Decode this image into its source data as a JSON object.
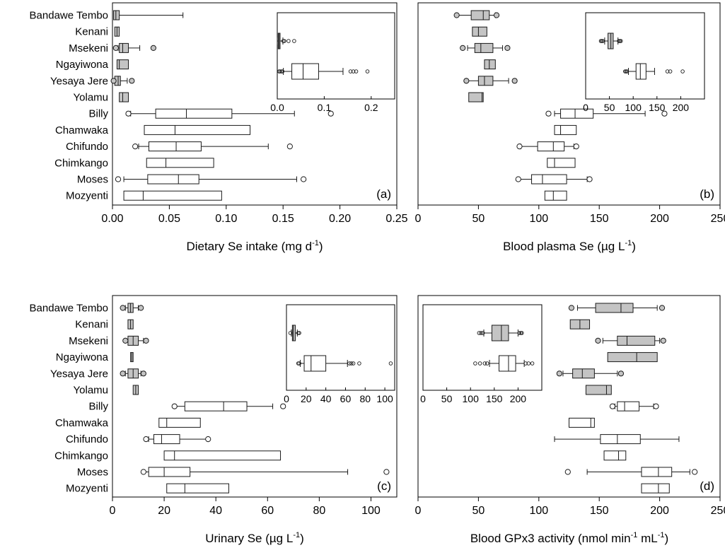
{
  "colors": {
    "rural": "#c4c4c4",
    "urban": "#ffffff",
    "stroke": "#1a1a1a"
  },
  "chart_data": [
    {
      "type": "boxplot",
      "panel": "(a)",
      "xlabel": {
        "main": "Dietary Se intake (mg d",
        "sup": "-1",
        "tail": ")"
      },
      "xlim": [
        0,
        0.25
      ],
      "ticks": [
        {
          "v": 0,
          "label": "0.00"
        },
        {
          "v": 0.05,
          "label": "0.05"
        },
        {
          "v": 0.1,
          "label": "0.10"
        },
        {
          "v": 0.15,
          "label": "0.15"
        },
        {
          "v": 0.2,
          "label": "0.20"
        },
        {
          "v": 0.25,
          "label": "0.25"
        }
      ],
      "sites": [
        "Bandawe Tembo",
        "Kenani",
        "Msekeni",
        "Ngayiwona",
        "Yesaya Jere",
        "Yolamu",
        "Billy",
        "Chamwaka",
        "Chifundo",
        "Chimkango",
        "Moses",
        "Mozyenti"
      ],
      "boxes": [
        {
          "site": "Bandawe Tembo",
          "group": "rural",
          "whislo": 0.001,
          "q1": 0.001,
          "med": 0.003,
          "q3": 0.006,
          "whishi": 0.062,
          "fliers": []
        },
        {
          "site": "Kenani",
          "group": "rural",
          "whislo": 0.002,
          "q1": 0.002,
          "med": 0.004,
          "q3": 0.006,
          "whishi": 0.006,
          "fliers": []
        },
        {
          "site": "Msekeni",
          "group": "rural",
          "whislo": 0.005,
          "q1": 0.006,
          "med": 0.009,
          "q3": 0.014,
          "whishi": 0.024,
          "fliers": [
            0.003,
            0.036
          ]
        },
        {
          "site": "Ngayiwona",
          "group": "rural",
          "whislo": 0.004,
          "q1": 0.004,
          "med": 0.006,
          "q3": 0.014,
          "whishi": 0.014,
          "fliers": []
        },
        {
          "site": "Yesaya Jere",
          "group": "rural",
          "whislo": 0.002,
          "q1": 0.002,
          "med": 0.005,
          "q3": 0.007,
          "whishi": 0.013,
          "fliers": [
            0.001,
            0.017
          ]
        },
        {
          "site": "Yolamu",
          "group": "rural",
          "whislo": 0.006,
          "q1": 0.006,
          "med": 0.009,
          "q3": 0.014,
          "whishi": 0.014,
          "fliers": []
        },
        {
          "site": "Billy",
          "group": "urban",
          "whislo": 0.016,
          "q1": 0.038,
          "med": 0.065,
          "q3": 0.105,
          "whishi": 0.16,
          "fliers": [
            0.014,
            0.192
          ]
        },
        {
          "site": "Chamwaka",
          "group": "urban",
          "whislo": 0.028,
          "q1": 0.028,
          "med": 0.055,
          "q3": 0.121,
          "whishi": 0.121,
          "fliers": []
        },
        {
          "site": "Chifundo",
          "group": "urban",
          "whislo": 0.023,
          "q1": 0.032,
          "med": 0.056,
          "q3": 0.078,
          "whishi": 0.137,
          "fliers": [
            0.02,
            0.156
          ]
        },
        {
          "site": "Chimkango",
          "group": "urban",
          "whislo": 0.03,
          "q1": 0.03,
          "med": 0.047,
          "q3": 0.089,
          "whishi": 0.089,
          "fliers": []
        },
        {
          "site": "Moses",
          "group": "urban",
          "whislo": 0.01,
          "q1": 0.031,
          "med": 0.058,
          "q3": 0.076,
          "whishi": 0.162,
          "fliers": [
            0.005,
            0.168
          ]
        },
        {
          "site": "Mozyenti",
          "group": "urban",
          "whislo": 0.01,
          "q1": 0.01,
          "med": 0.027,
          "q3": 0.096,
          "whishi": 0.096,
          "fliers": []
        }
      ],
      "inset": {
        "xlim": [
          0,
          0.25
        ],
        "ticks": [
          {
            "v": 0,
            "label": "0.0"
          },
          {
            "v": 0.1,
            "label": "0.1"
          },
          {
            "v": 0.2,
            "label": "0.2"
          }
        ],
        "boxes": [
          {
            "group": "rural",
            "whislo": 0.0,
            "q1": 0.002,
            "med": 0.004,
            "q3": 0.006,
            "whishi": 0.012,
            "fliers": [
              0.013,
              0.015,
              0.024,
              0.036
            ]
          },
          {
            "group": "urban",
            "whislo": 0.013,
            "q1": 0.031,
            "med": 0.055,
            "q3": 0.088,
            "whishi": 0.14,
            "fliers": [
              0.004,
              0.006,
              0.009,
              0.011,
              0.156,
              0.162,
              0.168,
              0.192
            ]
          }
        ]
      }
    },
    {
      "type": "boxplot",
      "panel": "(b)",
      "xlabel": {
        "main": "Blood plasma Se (µg L",
        "sup": "-1",
        "tail": ")"
      },
      "xlim": [
        0,
        250
      ],
      "ticks": [
        {
          "v": 0,
          "label": "0"
        },
        {
          "v": 50,
          "label": "50"
        },
        {
          "v": 100,
          "label": "100"
        },
        {
          "v": 150,
          "label": "150"
        },
        {
          "v": 200,
          "label": "200"
        },
        {
          "v": 250,
          "label": "250"
        }
      ],
      "boxes": [
        {
          "site": "Bandawe Tembo",
          "group": "rural",
          "whislo": 32,
          "q1": 44,
          "med": 54,
          "q3": 59,
          "whishi": 64,
          "fliers": [
            32,
            65
          ]
        },
        {
          "site": "Kenani",
          "group": "rural",
          "whislo": 45,
          "q1": 45,
          "med": 50,
          "q3": 57,
          "whishi": 57,
          "fliers": []
        },
        {
          "site": "Msekeni",
          "group": "rural",
          "whislo": 41,
          "q1": 47,
          "med": 52,
          "q3": 62,
          "whishi": 70,
          "fliers": [
            37,
            74
          ]
        },
        {
          "site": "Ngayiwona",
          "group": "rural",
          "whislo": 55,
          "q1": 55,
          "med": 59,
          "q3": 64,
          "whishi": 64,
          "fliers": []
        },
        {
          "site": "Yesaya Jere",
          "group": "rural",
          "whislo": 40,
          "q1": 50,
          "med": 55,
          "q3": 62,
          "whishi": 75,
          "fliers": [
            40,
            80
          ]
        },
        {
          "site": "Yolamu",
          "group": "rural",
          "whislo": 42,
          "q1": 42,
          "med": 53,
          "q3": 54,
          "whishi": 54,
          "fliers": []
        },
        {
          "site": "Billy",
          "group": "urban",
          "whislo": 113,
          "q1": 118,
          "med": 130,
          "q3": 145,
          "whishi": 188,
          "fliers": [
            108,
            204
          ]
        },
        {
          "site": "Chamwaka",
          "group": "urban",
          "whislo": 113,
          "q1": 113,
          "med": 118,
          "q3": 131,
          "whishi": 131,
          "fliers": []
        },
        {
          "site": "Chifundo",
          "group": "urban",
          "whislo": 85,
          "q1": 99,
          "med": 112,
          "q3": 121,
          "whishi": 129,
          "fliers": [
            84,
            131
          ]
        },
        {
          "site": "Chimkango",
          "group": "urban",
          "whislo": 107,
          "q1": 107,
          "med": 113,
          "q3": 130,
          "whishi": 130,
          "fliers": []
        },
        {
          "site": "Moses",
          "group": "urban",
          "whislo": 83,
          "q1": 94,
          "med": 103,
          "q3": 123,
          "whishi": 140,
          "fliers": [
            83,
            142
          ]
        },
        {
          "site": "Mozyenti",
          "group": "urban",
          "whislo": 105,
          "q1": 105,
          "med": 112,
          "q3": 123,
          "whishi": 123,
          "fliers": []
        }
      ],
      "inset": {
        "xlim": [
          0,
          250
        ],
        "ticks": [
          {
            "v": 0,
            "label": "0"
          },
          {
            "v": 50,
            "label": "50"
          },
          {
            "v": 100,
            "label": "100"
          },
          {
            "v": 150,
            "label": "150"
          },
          {
            "v": 200,
            "label": "200"
          }
        ],
        "boxes": [
          {
            "group": "rural",
            "whislo": 40,
            "q1": 47,
            "med": 53,
            "q3": 58,
            "whishi": 68,
            "fliers": [
              32,
              34,
              36,
              70,
              72,
              74
            ]
          },
          {
            "group": "urban",
            "whislo": 90,
            "q1": 106,
            "med": 115,
            "q3": 127,
            "whishi": 145,
            "fliers": [
              83,
              85,
              87,
              172,
              178,
              204
            ]
          }
        ]
      }
    },
    {
      "type": "boxplot",
      "panel": "(c)",
      "xlabel": {
        "main": "Urinary Se (µg L",
        "sup": "-1",
        "tail": ")"
      },
      "xlim": [
        0,
        110
      ],
      "ticks": [
        {
          "v": 0,
          "label": "0"
        },
        {
          "v": 20,
          "label": "20"
        },
        {
          "v": 40,
          "label": "40"
        },
        {
          "v": 60,
          "label": "60"
        },
        {
          "v": 80,
          "label": "80"
        },
        {
          "v": 100,
          "label": "100"
        }
      ],
      "boxes": [
        {
          "site": "Bandawe Tembo",
          "group": "rural",
          "whislo": 5,
          "q1": 6,
          "med": 7,
          "q3": 8,
          "whishi": 10,
          "fliers": [
            4,
            11
          ]
        },
        {
          "site": "Kenani",
          "group": "rural",
          "whislo": 6,
          "q1": 6,
          "med": 7,
          "q3": 8,
          "whishi": 8,
          "fliers": []
        },
        {
          "site": "Msekeni",
          "group": "rural",
          "whislo": 5,
          "q1": 6,
          "med": 8,
          "q3": 10,
          "whishi": 12,
          "fliers": [
            5,
            13
          ]
        },
        {
          "site": "Ngayiwona",
          "group": "rural",
          "whislo": 7,
          "q1": 7,
          "med": 7.5,
          "q3": 8,
          "whishi": 8,
          "fliers": []
        },
        {
          "site": "Yesaya Jere",
          "group": "rural",
          "whislo": 5,
          "q1": 6,
          "med": 8,
          "q3": 10,
          "whishi": 11,
          "fliers": [
            4,
            12
          ]
        },
        {
          "site": "Yolamu",
          "group": "rural",
          "whislo": 8,
          "q1": 8,
          "med": 9,
          "q3": 10,
          "whishi": 10,
          "fliers": []
        },
        {
          "site": "Billy",
          "group": "urban",
          "whislo": 24,
          "q1": 28,
          "med": 43,
          "q3": 52,
          "whishi": 62,
          "fliers": [
            24,
            66
          ]
        },
        {
          "site": "Chamwaka",
          "group": "urban",
          "whislo": 18,
          "q1": 18,
          "med": 21,
          "q3": 34,
          "whishi": 34,
          "fliers": []
        },
        {
          "site": "Chifundo",
          "group": "urban",
          "whislo": 14,
          "q1": 16,
          "med": 19,
          "q3": 26,
          "whishi": 37,
          "fliers": [
            13,
            37
          ]
        },
        {
          "site": "Chimkango",
          "group": "urban",
          "whislo": 20,
          "q1": 20,
          "med": 24,
          "q3": 65,
          "whishi": 65,
          "fliers": []
        },
        {
          "site": "Moses",
          "group": "urban",
          "whislo": 12,
          "q1": 14,
          "med": 20,
          "q3": 30,
          "whishi": 91,
          "fliers": [
            12,
            106
          ]
        },
        {
          "site": "Mozyenti",
          "group": "urban",
          "whislo": 21,
          "q1": 21,
          "med": 28,
          "q3": 45,
          "whishi": 45,
          "fliers": []
        }
      ],
      "inset": {
        "xlim": [
          0,
          110
        ],
        "ticks": [
          {
            "v": 0,
            "label": "0"
          },
          {
            "v": 20,
            "label": "20"
          },
          {
            "v": 40,
            "label": "40"
          },
          {
            "v": 60,
            "label": "60"
          },
          {
            "v": 80,
            "label": "80"
          },
          {
            "v": 100,
            "label": "100"
          }
        ],
        "boxes": [
          {
            "group": "rural",
            "whislo": 5,
            "q1": 6,
            "med": 7,
            "q3": 9,
            "whishi": 11,
            "fliers": [
              4,
              12,
              13
            ]
          },
          {
            "group": "urban",
            "whislo": 14,
            "q1": 18,
            "med": 25,
            "q3": 40,
            "whishi": 62,
            "fliers": [
              12,
              13,
              64,
              66,
              68,
              74,
              106
            ]
          }
        ]
      }
    },
    {
      "type": "boxplot",
      "panel": "(d)",
      "xlabel": {
        "main": "Blood GPx3 activity (nmol min",
        "sup": "-1",
        "mid": " mL",
        "sup2": "-1",
        "tail": ")"
      },
      "xlim": [
        0,
        250
      ],
      "ticks": [
        {
          "v": 0,
          "label": "0"
        },
        {
          "v": 50,
          "label": "50"
        },
        {
          "v": 100,
          "label": "100"
        },
        {
          "v": 150,
          "label": "150"
        },
        {
          "v": 200,
          "label": "200"
        },
        {
          "v": 250,
          "label": "250"
        }
      ],
      "boxes": [
        {
          "site": "Bandawe Tembo",
          "group": "rural",
          "whislo": 132,
          "q1": 147,
          "med": 168,
          "q3": 178,
          "whishi": 198,
          "fliers": [
            127,
            202
          ]
        },
        {
          "site": "Kenani",
          "group": "rural",
          "whislo": 126,
          "q1": 126,
          "med": 134,
          "q3": 142,
          "whishi": 142,
          "fliers": []
        },
        {
          "site": "Msekeni",
          "group": "rural",
          "whislo": 153,
          "q1": 165,
          "med": 173,
          "q3": 196,
          "whishi": 200,
          "fliers": [
            149,
            203
          ]
        },
        {
          "site": "Ngayiwona",
          "group": "rural",
          "whislo": 157,
          "q1": 157,
          "med": 181,
          "q3": 198,
          "whishi": 198,
          "fliers": []
        },
        {
          "site": "Yesaya Jere",
          "group": "rural",
          "whislo": 120,
          "q1": 128,
          "med": 136,
          "q3": 146,
          "whishi": 165,
          "fliers": [
            117,
            168
          ]
        },
        {
          "site": "Yolamu",
          "group": "rural",
          "whislo": 139,
          "q1": 139,
          "med": 156,
          "q3": 160,
          "whishi": 160,
          "fliers": []
        },
        {
          "site": "Billy",
          "group": "urban",
          "whislo": 163,
          "q1": 165,
          "med": 171,
          "q3": 183,
          "whishi": 195,
          "fliers": [
            161,
            197
          ]
        },
        {
          "site": "Chamwaka",
          "group": "urban",
          "whislo": 125,
          "q1": 125,
          "med": 143,
          "q3": 146,
          "whishi": 146,
          "fliers": []
        },
        {
          "site": "Chifundo",
          "group": "urban",
          "whislo": 113,
          "q1": 151,
          "med": 165,
          "q3": 184,
          "whishi": 216,
          "fliers": []
        },
        {
          "site": "Chimkango",
          "group": "urban",
          "whislo": 154,
          "q1": 154,
          "med": 166,
          "q3": 172,
          "whishi": 172,
          "fliers": []
        },
        {
          "site": "Moses",
          "group": "urban",
          "whislo": 140,
          "q1": 185,
          "med": 199,
          "q3": 210,
          "whishi": 225,
          "fliers": [
            124,
            229
          ]
        },
        {
          "site": "Mozyenti",
          "group": "urban",
          "whislo": 185,
          "q1": 185,
          "med": 199,
          "q3": 208,
          "whishi": 208,
          "fliers": []
        }
      ],
      "inset": {
        "xlim": [
          0,
          250
        ],
        "ticks": [
          {
            "v": 0,
            "label": "0"
          },
          {
            "v": 50,
            "label": "50"
          },
          {
            "v": 100,
            "label": "100"
          },
          {
            "v": 150,
            "label": "150"
          },
          {
            "v": 200,
            "label": "200"
          }
        ],
        "boxes": [
          {
            "group": "rural",
            "whislo": 128,
            "q1": 145,
            "med": 165,
            "q3": 180,
            "whishi": 200,
            "fliers": [
              118,
              122,
              126,
              203,
              206,
              208
            ]
          },
          {
            "group": "urban",
            "whislo": 140,
            "q1": 160,
            "med": 180,
            "q3": 195,
            "whishi": 213,
            "fliers": [
              110,
              120,
              130,
              135,
              216,
              222,
              230
            ]
          }
        ]
      }
    }
  ]
}
